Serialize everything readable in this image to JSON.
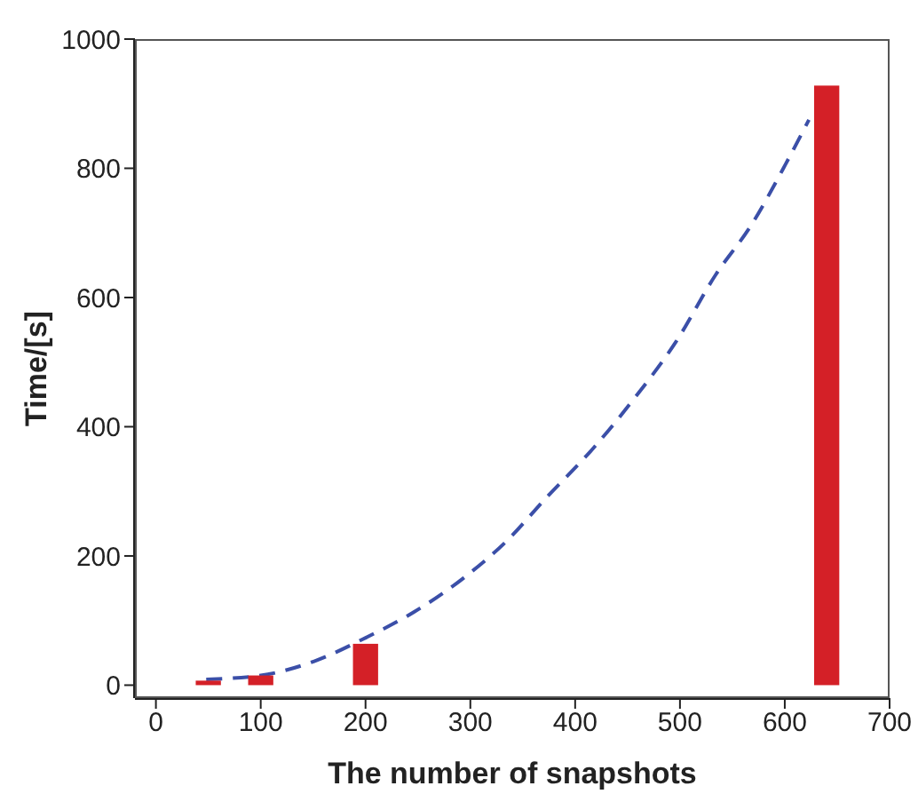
{
  "chart_data": {
    "type": "bar",
    "xlabel": "The number of snapshots",
    "ylabel": "Time/[s]",
    "xlim": [
      -20,
      700
    ],
    "xticks": [
      0,
      100,
      200,
      300,
      400,
      500,
      600,
      700
    ],
    "ylim": [
      -20,
      1000
    ],
    "yticks": [
      0,
      200,
      400,
      600,
      800,
      1000
    ],
    "series": [
      {
        "color": "#d42027",
        "x": [
          50,
          100,
          200,
          640
        ],
        "values": [
          7,
          15,
          64,
          928
        ]
      },
      {
        "type": "line",
        "color": "#3b4fa8",
        "line_style": "dashed",
        "marker": "none",
        "x": [
          48,
          100,
          151,
          201,
          246,
          296,
          334,
          373,
          418,
          457,
          496,
          534,
          568,
          601,
          623
        ],
        "values": [
          9,
          15,
          37,
          74,
          113,
          169,
          222,
          291,
          368,
          445,
          531,
          635,
          712,
          807,
          875
        ]
      }
    ]
  }
}
